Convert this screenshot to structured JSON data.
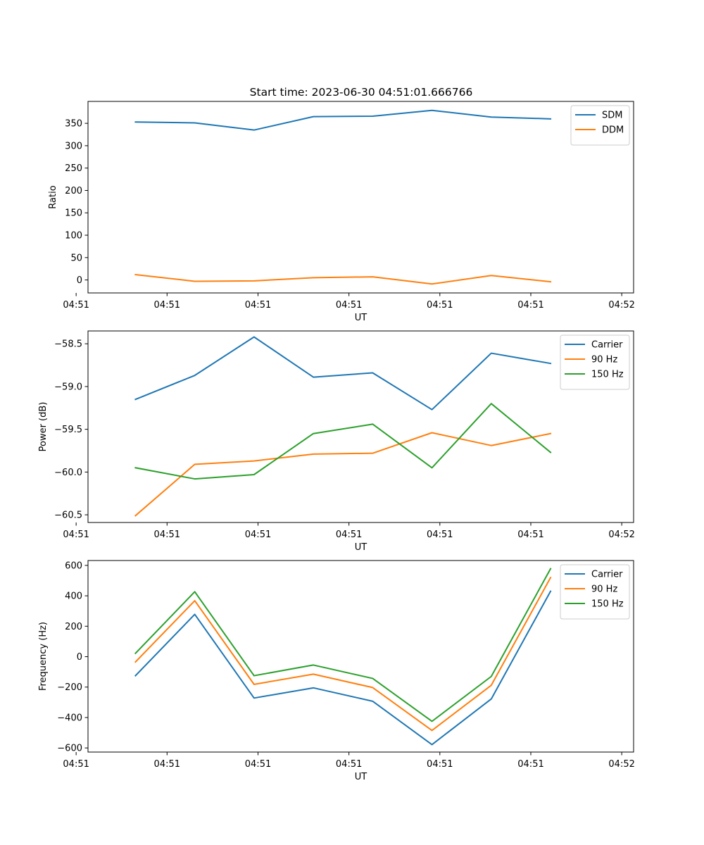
{
  "figure": {
    "title": "Start time: 2023-06-30 04:51:01.666766"
  },
  "chart_data": [
    {
      "type": "line",
      "title": "Start time: 2023-06-30 04:51:01.666766",
      "xlabel": "UT",
      "ylabel": "Ratio",
      "x_tick_labels": [
        "04:51",
        "04:51",
        "04:51",
        "04:51",
        "04:51",
        "04:51",
        "04:52"
      ],
      "y_ticks": [
        0,
        50,
        100,
        150,
        200,
        250,
        300,
        350
      ],
      "y_tick_labels": [
        "0",
        "50",
        "100",
        "150",
        "200",
        "250",
        "300",
        "350"
      ],
      "ylim": [
        -29,
        399
      ],
      "legend": "top-right",
      "x": [
        1,
        2,
        3,
        4,
        5,
        6,
        7,
        8
      ],
      "xlim": [
        0.2,
        9.4
      ],
      "series": [
        {
          "name": "SDM",
          "color": "#1f77b4",
          "values": [
            353,
            351,
            335,
            365,
            366,
            379,
            364,
            360
          ]
        },
        {
          "name": "DDM",
          "color": "#ff7f0e",
          "values": [
            12,
            -3,
            -2,
            5,
            7,
            -9,
            10,
            -4
          ]
        }
      ]
    },
    {
      "type": "line",
      "xlabel": "UT",
      "ylabel": "Power (dB)",
      "x_tick_labels": [
        "04:51",
        "04:51",
        "04:51",
        "04:51",
        "04:51",
        "04:51",
        "04:52"
      ],
      "y_ticks": [
        -60.5,
        -60.0,
        -59.5,
        -59.0,
        -58.5
      ],
      "y_tick_labels": [
        "−60.5",
        "−60.0",
        "−59.5",
        "−59.0",
        "−58.5"
      ],
      "ylim": [
        -60.59,
        -58.35
      ],
      "legend": "top-right",
      "x": [
        1,
        2,
        3,
        4,
        5,
        6,
        7,
        8
      ],
      "xlim": [
        0.2,
        9.4
      ],
      "series": [
        {
          "name": "Carrier",
          "color": "#1f77b4",
          "values": [
            -59.15,
            -58.87,
            -58.42,
            -58.89,
            -58.84,
            -59.27,
            -58.61,
            -58.73
          ]
        },
        {
          "name": "90 Hz",
          "color": "#ff7f0e",
          "values": [
            -60.51,
            -59.91,
            -59.87,
            -59.79,
            -59.78,
            -59.54,
            -59.69,
            -59.55
          ]
        },
        {
          "name": "150 Hz",
          "color": "#2ca02c",
          "values": [
            -59.95,
            -60.08,
            -60.03,
            -59.55,
            -59.44,
            -59.95,
            -59.2,
            -59.77
          ]
        }
      ]
    },
    {
      "type": "line",
      "xlabel": "UT",
      "ylabel": "Frequency (Hz)",
      "x_tick_labels": [
        "04:51",
        "04:51",
        "04:51",
        "04:51",
        "04:51",
        "04:51",
        "04:52"
      ],
      "y_ticks": [
        -600,
        -400,
        -200,
        0,
        200,
        400,
        600
      ],
      "y_tick_labels": [
        "−600",
        "−400",
        "−200",
        "0",
        "200",
        "400",
        "600"
      ],
      "ylim": [
        -627,
        632
      ],
      "legend": "top-right",
      "x": [
        1,
        2,
        3,
        4,
        5,
        6,
        7,
        8
      ],
      "xlim": [
        0.2,
        9.4
      ],
      "series": [
        {
          "name": "Carrier",
          "color": "#1f77b4",
          "values": [
            -125,
            278,
            -272,
            -205,
            -293,
            -578,
            -278,
            430
          ]
        },
        {
          "name": "90 Hz",
          "color": "#ff7f0e",
          "values": [
            -35,
            368,
            -182,
            -115,
            -203,
            -485,
            -188,
            520
          ]
        },
        {
          "name": "150 Hz",
          "color": "#2ca02c",
          "values": [
            22,
            427,
            -125,
            -55,
            -143,
            -425,
            -130,
            578
          ]
        }
      ]
    }
  ]
}
